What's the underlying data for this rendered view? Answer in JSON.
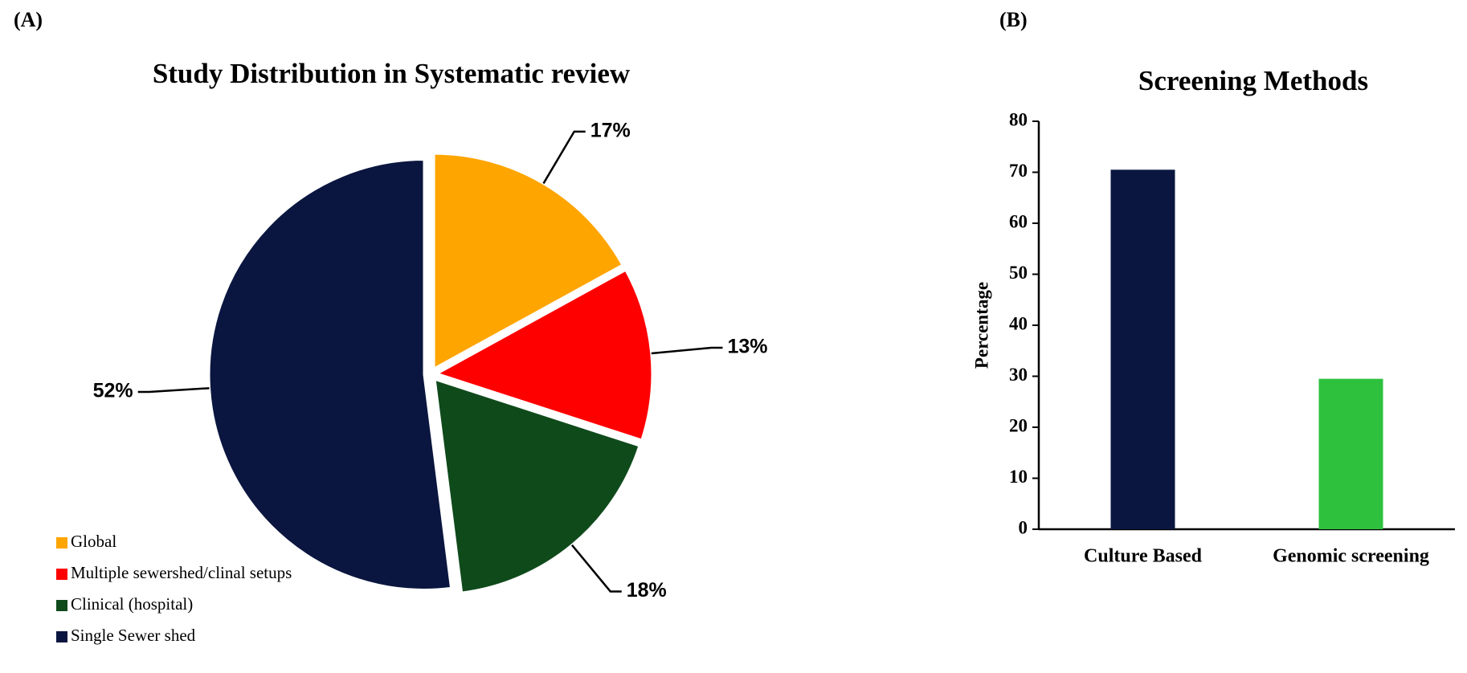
{
  "chart_data": [
    {
      "type": "pie",
      "panel_label": "(A)",
      "title": "Study Distribution in Systematic review",
      "categories": [
        "Global",
        "Multiple sewershed/clinal setups",
        "Clinical (hospital)",
        "Single Sewer shed"
      ],
      "values": [
        17,
        13,
        18,
        52
      ],
      "value_labels": [
        "17%",
        "13%",
        "18%",
        "52%"
      ],
      "colors": [
        "#ffa500",
        "#ff0000",
        "#0f4a1b",
        "#0a163f"
      ],
      "legend": "bottom-left"
    },
    {
      "type": "bar",
      "panel_label": "(B)",
      "title": "Screening  Methods",
      "y_label": "Percentage",
      "categories": [
        "Culture Based",
        "Genomic screening"
      ],
      "values": [
        70.5,
        29.5
      ],
      "colors": [
        "#0a163f",
        "#2ec13e"
      ],
      "ylim": [
        0,
        80
      ],
      "yticks": [
        0,
        10,
        20,
        30,
        40,
        50,
        60,
        70,
        80
      ],
      "grid": false
    }
  ]
}
